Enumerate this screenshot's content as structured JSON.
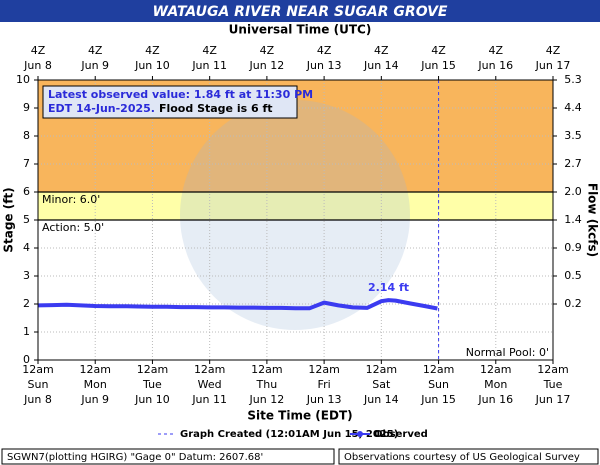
{
  "chart_data": {
    "type": "line",
    "title": "WATAUGA RIVER NEAR SUGAR GROVE",
    "x2label": "Universal Time (UTC)",
    "xlabel": "Site Time (EDT)",
    "ylabel": "Stage (ft)",
    "y2label": "Flow (kcfs)",
    "xlim": [
      "2025-06-08T00:00",
      "2025-06-17T00:00"
    ],
    "ylim": [
      0,
      10
    ],
    "yticks": [
      0,
      1,
      2,
      3,
      4,
      5,
      6,
      7,
      8,
      9,
      10
    ],
    "y2ticks": [
      5.3,
      4.4,
      3.5,
      2.7,
      {
        "value": 2,
        "label": "2.0"
      },
      1.4,
      0.9,
      0.5,
      0.2
    ],
    "y2tick_stage": [
      10,
      9,
      8,
      7,
      6,
      5,
      4,
      3,
      2
    ],
    "xticks": [
      {
        "value": "2025-06-08T00:00",
        "label": "12am",
        "weekday": "Sun",
        "date": "Jun 8"
      },
      {
        "value": "2025-06-09T00:00",
        "label": "12am",
        "weekday": "Mon",
        "date": "Jun 9"
      },
      {
        "value": "2025-06-10T00:00",
        "label": "12am",
        "weekday": "Tue",
        "date": "Jun 10"
      },
      {
        "value": "2025-06-11T00:00",
        "label": "12am",
        "weekday": "Wed",
        "date": "Jun 11"
      },
      {
        "value": "2025-06-12T00:00",
        "label": "12am",
        "weekday": "Thu",
        "date": "Jun 12"
      },
      {
        "value": "2025-06-13T00:00",
        "label": "12am",
        "weekday": "Fri",
        "date": "Jun 13"
      },
      {
        "value": "2025-06-14T00:00",
        "label": "12am",
        "weekday": "Sat",
        "date": "Jun 14"
      },
      {
        "value": "2025-06-15T00:00",
        "label": "12am",
        "weekday": "Sun",
        "date": "Jun 15"
      },
      {
        "value": "2025-06-16T00:00",
        "label": "12am",
        "weekday": "Mon",
        "date": "Jun 16"
      },
      {
        "value": "2025-06-17T00:00",
        "label": "12am",
        "weekday": "Tue",
        "date": "Jun 17"
      }
    ],
    "x2ticks": [
      {
        "value": "2025-06-08T00:00",
        "label": "4Z",
        "date": "Jun 8"
      },
      {
        "value": "2025-06-09T00:00",
        "label": "4Z",
        "date": "Jun 9"
      },
      {
        "value": "2025-06-10T00:00",
        "label": "4Z",
        "date": "Jun 10"
      },
      {
        "value": "2025-06-11T00:00",
        "label": "4Z",
        "date": "Jun 11"
      },
      {
        "value": "2025-06-12T00:00",
        "label": "4Z",
        "date": "Jun 12"
      },
      {
        "value": "2025-06-13T00:00",
        "label": "4Z",
        "date": "Jun 13"
      },
      {
        "value": "2025-06-14T00:00",
        "label": "4Z",
        "date": "Jun 14"
      },
      {
        "value": "2025-06-15T00:00",
        "label": "4Z",
        "date": "Jun 15"
      },
      {
        "value": "2025-06-16T00:00",
        "label": "4Z",
        "date": "Jun 16"
      },
      {
        "value": "2025-06-17T00:00",
        "label": "4Z",
        "date": "Jun 17"
      }
    ],
    "grid": true,
    "bands": [
      {
        "from": 6,
        "to": 10,
        "color": "#f8b55c"
      },
      {
        "from": 5,
        "to": 6,
        "color": "#ffffa8"
      }
    ],
    "thresholds": [
      {
        "label": "Minor: 6.0'",
        "value": 6
      },
      {
        "label": "Action: 5.0'",
        "value": 5
      }
    ],
    "normal_pool": {
      "label": "Normal Pool: 0'",
      "value": 0
    },
    "info_line1": "Latest observed value: 1.84 ft at 11:30 PM",
    "info_line2": "EDT 14-Jun-2025.",
    "info_flood": "Flood Stage is 6 ft",
    "graph_created": {
      "label": "Graph Created (12:01AM Jun 15, 2025)",
      "x": "2025-06-15T00:01",
      "color": "#3b3bf0"
    },
    "peak_label": {
      "text": "2.14 ft",
      "x": "2025-06-14T03:00",
      "value": 2.14
    },
    "series": [
      {
        "name": "Observed",
        "color": "#3b3bf0",
        "x": [
          "2025-06-08T00:00",
          "2025-06-08T06:00",
          "2025-06-08T12:00",
          "2025-06-08T18:00",
          "2025-06-09T00:00",
          "2025-06-09T06:00",
          "2025-06-09T12:00",
          "2025-06-09T18:00",
          "2025-06-10T00:00",
          "2025-06-10T06:00",
          "2025-06-10T12:00",
          "2025-06-10T18:00",
          "2025-06-11T00:00",
          "2025-06-11T06:00",
          "2025-06-11T12:00",
          "2025-06-11T18:00",
          "2025-06-12T00:00",
          "2025-06-12T06:00",
          "2025-06-12T12:00",
          "2025-06-12T18:00",
          "2025-06-13T00:00",
          "2025-06-13T06:00",
          "2025-06-13T12:00",
          "2025-06-13T18:00",
          "2025-06-14T00:00",
          "2025-06-14T03:00",
          "2025-06-14T06:00",
          "2025-06-14T12:00",
          "2025-06-14T18:00",
          "2025-06-14T23:30"
        ],
        "values": [
          1.95,
          1.96,
          1.97,
          1.95,
          1.93,
          1.92,
          1.92,
          1.91,
          1.9,
          1.9,
          1.89,
          1.89,
          1.88,
          1.88,
          1.87,
          1.87,
          1.86,
          1.86,
          1.85,
          1.85,
          2.05,
          1.95,
          1.88,
          1.86,
          2.1,
          2.14,
          2.12,
          2.02,
          1.93,
          1.84
        ]
      }
    ],
    "footer_left": "SGWN7(plotting HGIRG) \"Gage 0\" Datum: 2607.68'",
    "footer_right": "Observations courtesy of US Geological Survey"
  }
}
